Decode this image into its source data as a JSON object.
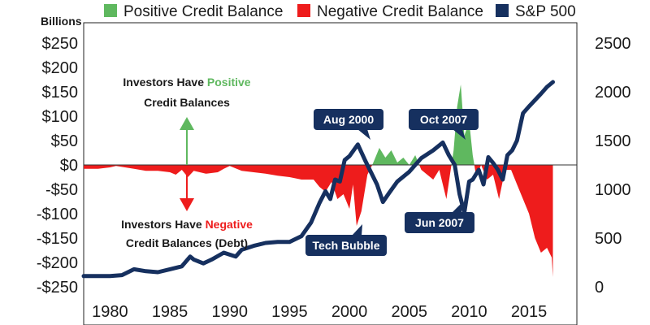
{
  "chart_data": {
    "type": "area",
    "y_unit_label": "Billions",
    "legend": [
      {
        "label": "Positive Credit Balance",
        "color": "#5fb85f"
      },
      {
        "label": "Negative Credit Balance",
        "color": "#ee1c1c"
      },
      {
        "label": "S&P 500",
        "color": "#16305f"
      }
    ],
    "left_axis": {
      "min": -250,
      "max": 250,
      "ticks": [
        250,
        200,
        150,
        100,
        50,
        0,
        -50,
        -100,
        -150,
        -200,
        -250
      ],
      "tick_labels": [
        "$250",
        "$200",
        "$150",
        "$100",
        "$50",
        "$0",
        "-$50",
        "-$100",
        "-$150",
        "-$200",
        "-$250"
      ]
    },
    "right_axis": {
      "min": 0,
      "max": 2500,
      "ticks": [
        2500,
        2000,
        1500,
        1000,
        500,
        0
      ],
      "tick_labels": [
        "2500",
        "2000",
        "1500",
        "1000",
        "500",
        "0"
      ]
    },
    "x_axis": {
      "min": 1977.8,
      "max": 2019.0,
      "ticks": [
        1980,
        1985,
        1990,
        1995,
        2000,
        2005,
        2010,
        2015
      ],
      "tick_labels": [
        "1980",
        "1985",
        "1990",
        "1995",
        "2000",
        "2005",
        "2010",
        "2015"
      ]
    },
    "credit_balance": {
      "x": [
        1977.8,
        1979,
        1980,
        1980.5,
        1982,
        1983,
        1984,
        1985,
        1985.5,
        1986,
        1986.5,
        1987,
        1988,
        1989,
        1989.5,
        1990,
        1991,
        1992,
        1993,
        1994,
        1995,
        1996,
        1997,
        1997.5,
        1998,
        1998.5,
        1999,
        1999.5,
        2000,
        2000.3,
        2000.6,
        2001,
        2001.5,
        2002,
        2002.5,
        2003,
        2003.5,
        2004,
        2004.5,
        2005,
        2005.5,
        2006,
        2006.5,
        2007,
        2007.5,
        2007.8,
        2008.1,
        2008.4,
        2008.7,
        2009,
        2009.3,
        2009.6,
        2010,
        2010.3,
        2010.6,
        2011,
        2011.5,
        2012,
        2012.5,
        2013,
        2013.5,
        2014,
        2014.5,
        2015,
        2015.5,
        2016,
        2016.5,
        2016.9,
        2017
      ],
      "values": [
        -8,
        -8,
        -5,
        -2,
        -8,
        -12,
        -12,
        -15,
        -20,
        -10,
        -25,
        -12,
        -18,
        -15,
        -8,
        -2,
        -12,
        -15,
        -18,
        -22,
        -25,
        -30,
        -30,
        -45,
        -55,
        -35,
        -70,
        -60,
        -90,
        -40,
        -125,
        -95,
        -20,
        5,
        35,
        15,
        30,
        5,
        15,
        0,
        20,
        -10,
        -20,
        -30,
        -10,
        -40,
        -70,
        -20,
        30,
        120,
        165,
        60,
        90,
        20,
        -25,
        0,
        -30,
        -20,
        -70,
        -10,
        -10,
        -40,
        -70,
        -100,
        -150,
        -180,
        -170,
        -190,
        -230
      ]
    },
    "sp500": {
      "x": [
        1977.8,
        1980,
        1981,
        1982,
        1983,
        1984,
        1985,
        1986,
        1986.7,
        1987,
        1987.8,
        1988.5,
        1989.5,
        1990,
        1990.5,
        1991,
        1992,
        1993,
        1994,
        1995,
        1996,
        1996.8,
        1997.5,
        1998,
        1998.4,
        1998.8,
        1999.2,
        1999.6,
        2000,
        2000.7,
        2001.3,
        2001.7,
        2002.3,
        2002.8,
        2003.3,
        2004,
        2005,
        2006,
        2007,
        2007.8,
        2008.3,
        2008.8,
        2009.2,
        2009.6,
        2010,
        2010.3,
        2010.8,
        2011.2,
        2011.6,
        2012,
        2012.4,
        2012.8,
        2013.2,
        2013.6,
        2014,
        2014.5,
        2015,
        2016,
        2016.5,
        2017
      ],
      "values": [
        110,
        110,
        120,
        180,
        160,
        150,
        180,
        210,
        310,
        280,
        240,
        280,
        350,
        330,
        310,
        380,
        420,
        450,
        460,
        460,
        520,
        660,
        860,
        980,
        900,
        1100,
        1080,
        1300,
        1340,
        1460,
        1300,
        1200,
        1050,
        870,
        960,
        1080,
        1180,
        1320,
        1400,
        1480,
        1350,
        1250,
        950,
        760,
        1080,
        1100,
        1200,
        1050,
        1330,
        1270,
        1200,
        1100,
        1350,
        1400,
        1500,
        1780,
        1850,
        1980,
        2050,
        2100
      ]
    },
    "annotations": {
      "positive_line1": "Investors Have ",
      "positive_word": "Positive",
      "positive_line2": "Credit Balances",
      "negative_line1": "Investors Have ",
      "negative_word": "Negative",
      "negative_line2": "Credit Balances (Debt)",
      "callouts": [
        "Aug 2000",
        "Oct 2007",
        "Jun 2007",
        "Tech Bubble"
      ]
    }
  }
}
